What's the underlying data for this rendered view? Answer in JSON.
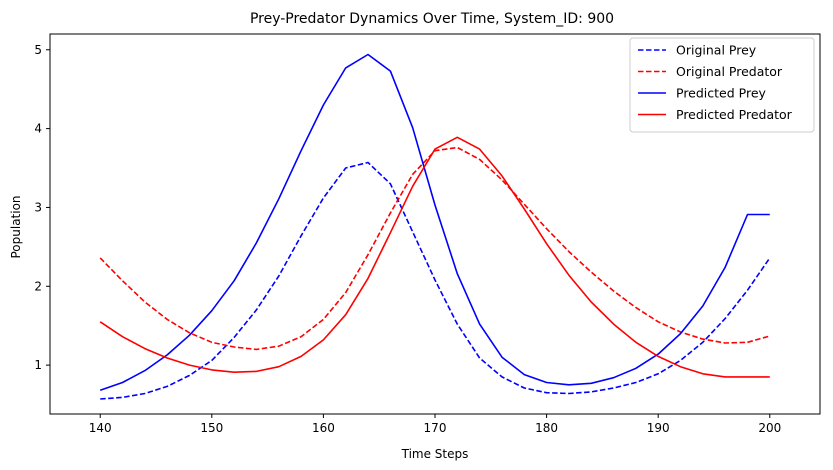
{
  "chart_data": {
    "type": "line",
    "title": "Prey-Predator Dynamics Over Time, System_ID: 900",
    "xlabel": "Time Steps",
    "ylabel": "Population",
    "xlim": [
      135.5,
      204.5
    ],
    "ylim": [
      0.38,
      5.2
    ],
    "xticks": [
      140,
      150,
      160,
      170,
      180,
      190,
      200
    ],
    "yticks": [
      1,
      2,
      3,
      4,
      5
    ],
    "grid": false,
    "legend_position": "top-right",
    "x": [
      140,
      142,
      144,
      146,
      148,
      150,
      152,
      154,
      156,
      158,
      160,
      162,
      164,
      166,
      168,
      170,
      172,
      174,
      176,
      178,
      180,
      182,
      184,
      186,
      188,
      190,
      192,
      194,
      196,
      198,
      200
    ],
    "series": [
      {
        "name": "Original Prey",
        "color": "#0000ff",
        "dash": "dashed",
        "values": [
          0.57,
          0.59,
          0.64,
          0.73,
          0.87,
          1.06,
          1.35,
          1.7,
          2.13,
          2.64,
          3.12,
          3.5,
          3.57,
          3.3,
          2.69,
          2.08,
          1.52,
          1.09,
          0.85,
          0.71,
          0.65,
          0.64,
          0.66,
          0.71,
          0.78,
          0.89,
          1.06,
          1.29,
          1.59,
          1.95,
          2.36
        ]
      },
      {
        "name": "Original Predator",
        "color": "#ff0000",
        "dash": "dashed",
        "values": [
          2.36,
          2.07,
          1.8,
          1.58,
          1.41,
          1.29,
          1.23,
          1.2,
          1.24,
          1.36,
          1.58,
          1.92,
          2.4,
          2.93,
          3.42,
          3.72,
          3.76,
          3.61,
          3.35,
          3.04,
          2.73,
          2.44,
          2.18,
          1.94,
          1.73,
          1.55,
          1.42,
          1.33,
          1.28,
          1.29,
          1.37
        ]
      },
      {
        "name": "Predicted Prey",
        "color": "#0000ff",
        "dash": "solid",
        "values": [
          0.68,
          0.78,
          0.93,
          1.13,
          1.38,
          1.69,
          2.07,
          2.55,
          3.11,
          3.72,
          4.3,
          4.77,
          4.94,
          4.73,
          4.01,
          3.03,
          2.16,
          1.52,
          1.1,
          0.88,
          0.78,
          0.75,
          0.77,
          0.84,
          0.96,
          1.14,
          1.4,
          1.75,
          2.24,
          2.91,
          2.91
        ]
      },
      {
        "name": "Predicted Predator",
        "color": "#ff0000",
        "dash": "solid",
        "values": [
          1.55,
          1.36,
          1.21,
          1.09,
          1.0,
          0.94,
          0.91,
          0.92,
          0.98,
          1.11,
          1.32,
          1.64,
          2.1,
          2.68,
          3.27,
          3.74,
          3.89,
          3.74,
          3.4,
          2.98,
          2.54,
          2.14,
          1.8,
          1.52,
          1.29,
          1.11,
          0.98,
          0.89,
          0.85,
          0.85,
          0.85
        ]
      }
    ]
  }
}
